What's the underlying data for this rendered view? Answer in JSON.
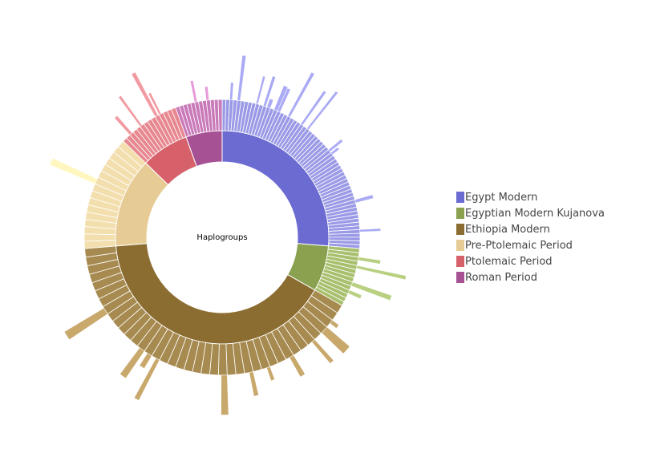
{
  "chart_data": {
    "type": "sunburst",
    "root_label": "Haplogroups",
    "legend_position": "right",
    "groups": [
      {
        "name": "Egypt Modern",
        "value": 91,
        "color": "#6b6bd1",
        "ring2_color": "#9a9ae6",
        "ring3_color": "#aaaaf5",
        "subgroups": 60
      },
      {
        "name": "Egyptian Modern Kujanova",
        "value": 24,
        "color": "#8aa14f",
        "ring2_color": "#a8c06d",
        "ring3_color": "#b8d080",
        "subgroups": 14
      },
      {
        "name": "Ethiopia Modern",
        "value": 140,
        "color": "#8c6d31",
        "ring2_color": "#a78a4f",
        "ring3_color": "#c9a86b",
        "subgroups": 40
      },
      {
        "name": "Pre-Ptolemaic Period",
        "value": 47,
        "color": "#e7cb94",
        "ring2_color": "#f3dfae",
        "ring3_color": "#fff6c0",
        "subgroups": 16
      },
      {
        "name": "Ptolemaic Period",
        "value": 25,
        "color": "#d6616b",
        "ring2_color": "#e7878f",
        "ring3_color": "#f29aa2",
        "subgroups": 14
      },
      {
        "name": "Roman Period",
        "value": 19,
        "color": "#a55194",
        "ring2_color": "#c97ab9",
        "ring3_color": "#e89ad9",
        "subgroups": 12
      }
    ]
  }
}
